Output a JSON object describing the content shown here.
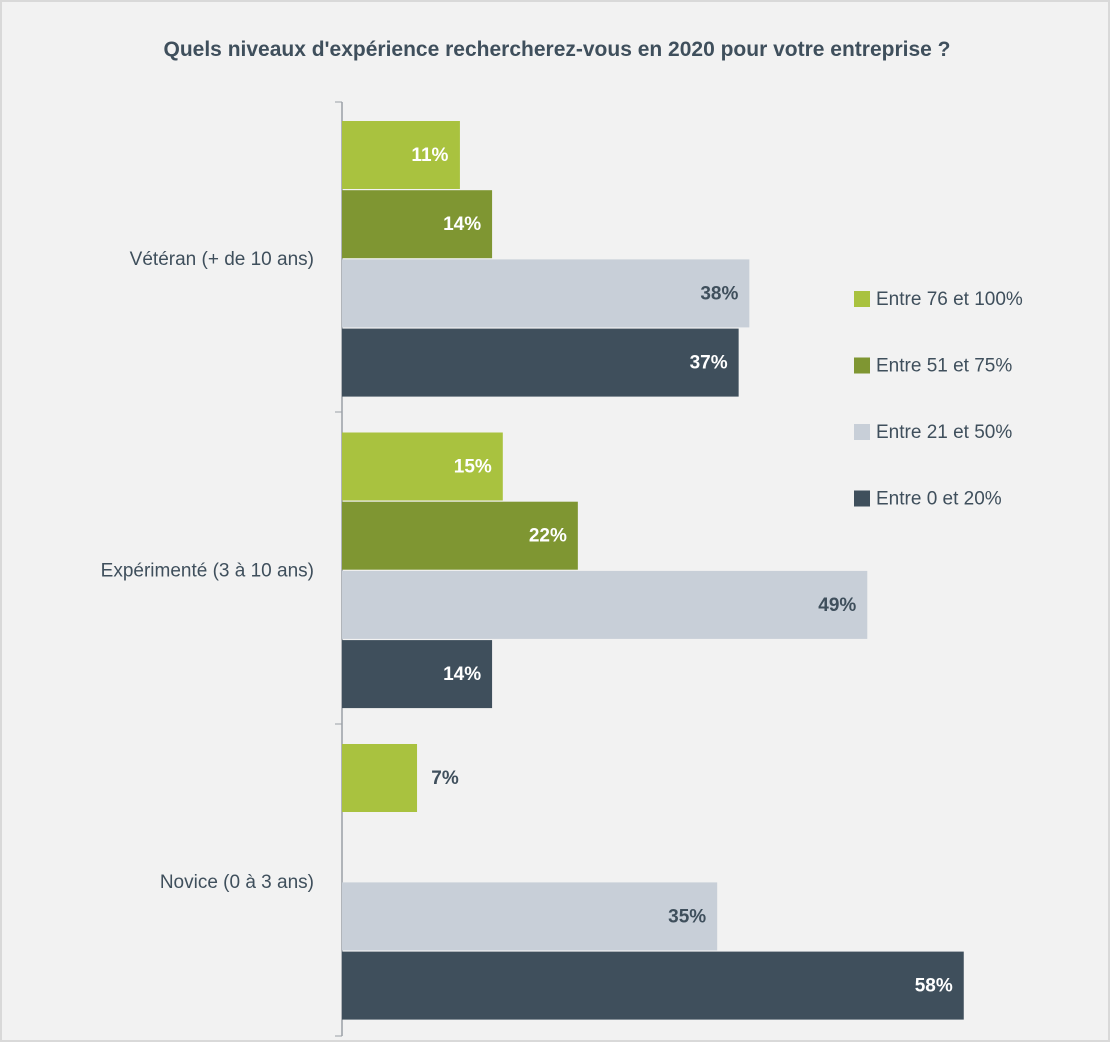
{
  "chart_data": {
    "type": "hbar",
    "title": "Quels niveaux d'expérience rechercherez-vous en 2020 pour votre entreprise ?",
    "categories": [
      "Vétéran (+ de 10 ans)",
      "Expérimenté (3 à 10 ans)",
      "Novice (0 à 3 ans)"
    ],
    "series": [
      {
        "name": "Entre 76 et 100%",
        "color": "#a9c23f",
        "values": [
          11,
          15,
          7
        ],
        "value_labels": [
          "11%",
          "15%",
          "7%"
        ]
      },
      {
        "name": "Entre 51 et 75%",
        "color": "#7f9632",
        "values": [
          14,
          22,
          null
        ],
        "value_labels": [
          "14%",
          "22%",
          null
        ]
      },
      {
        "name": "Entre 21 et 50%",
        "color": "#c8cfd8",
        "values": [
          38,
          49,
          35
        ],
        "value_labels": [
          "38%",
          "49%",
          "35%"
        ]
      },
      {
        "name": "Entre 0 et 20%",
        "color": "#3f4f5c",
        "values": [
          37,
          14,
          58
        ],
        "value_labels": [
          "37%",
          "14%",
          "58%"
        ]
      }
    ],
    "legend": "right"
  }
}
